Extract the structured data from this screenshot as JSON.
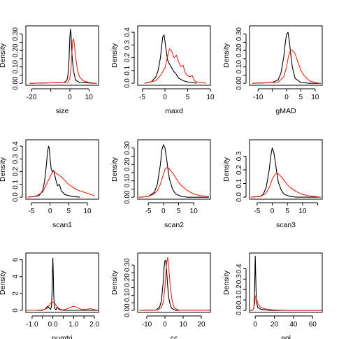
{
  "chart_data": [
    {
      "type": "line",
      "title": "",
      "xlabel": "size",
      "ylabel": "Density",
      "xlim": [
        -23,
        15
      ],
      "ylim": [
        -0.012,
        0.35
      ],
      "xticks": [
        -20,
        -10,
        0,
        10
      ],
      "xtick_labels": [
        "-20",
        "",
        "0",
        "10"
      ],
      "yticks": [
        0.0,
        0.05,
        0.1,
        0.15,
        0.2,
        0.25,
        0.3
      ],
      "ytick_labels": [
        "0.00",
        "",
        "0.10",
        "",
        "0.20",
        "",
        "0.30"
      ],
      "series": [
        {
          "color": "#000000",
          "x": [
            -21,
            -3,
            -1.5,
            -1,
            -0.5,
            0,
            0.3,
            0.6,
            1,
            1.5,
            2,
            3,
            5,
            14
          ],
          "y": [
            0,
            0.005,
            0.02,
            0.05,
            0.13,
            0.28,
            0.33,
            0.3,
            0.2,
            0.12,
            0.07,
            0.02,
            0.005,
            0
          ]
        },
        {
          "color": "#e8261c",
          "x": [
            -21,
            -1,
            0,
            0.5,
            1,
            1.5,
            2,
            2.5,
            3,
            4,
            5,
            7,
            10,
            14
          ],
          "y": [
            0,
            0.005,
            0.03,
            0.08,
            0.17,
            0.26,
            0.27,
            0.22,
            0.16,
            0.08,
            0.04,
            0.015,
            0.005,
            0
          ]
        }
      ]
    },
    {
      "type": "line",
      "title": "",
      "xlabel": "maxd",
      "ylabel": "Density",
      "xlim": [
        -6,
        10
      ],
      "ylim": [
        -0.016,
        0.45
      ],
      "xticks": [
        -5,
        0,
        5,
        10
      ],
      "xtick_labels": [
        "-5",
        "0",
        "5",
        "10"
      ],
      "yticks": [
        0.0,
        0.1,
        0.2,
        0.3,
        0.4
      ],
      "ytick_labels": [
        "0.0",
        "0.1",
        "0.2",
        "0.3",
        "0.4"
      ],
      "series": [
        {
          "color": "#000000",
          "x": [
            -4.5,
            -3,
            -2,
            -1.5,
            -1,
            -0.5,
            -0.2,
            0,
            0.3,
            0.6,
            1,
            1.5,
            2,
            2.5,
            3,
            4,
            5,
            7
          ],
          "y": [
            0,
            0.01,
            0.05,
            0.1,
            0.2,
            0.36,
            0.38,
            0.33,
            0.25,
            0.18,
            0.15,
            0.12,
            0.09,
            0.07,
            0.04,
            0.02,
            0.01,
            0
          ]
        },
        {
          "color": "#e8261c",
          "x": [
            -4.5,
            -2,
            -1,
            0,
            0.5,
            1,
            1.5,
            2,
            2.5,
            3,
            3.5,
            4,
            4.5,
            5,
            5.5,
            6,
            6.5,
            7,
            8,
            9
          ],
          "y": [
            0,
            0.02,
            0.06,
            0.12,
            0.2,
            0.27,
            0.25,
            0.2,
            0.22,
            0.17,
            0.13,
            0.14,
            0.08,
            0.06,
            0.05,
            0.06,
            0.02,
            0.01,
            0.005,
            0
          ]
        }
      ]
    },
    {
      "type": "line",
      "title": "",
      "xlabel": "gMAD",
      "ylabel": "Density",
      "xlim": [
        -13,
        12.5
      ],
      "ylim": [
        -0.012,
        0.35
      ],
      "xticks": [
        -10,
        -5,
        0,
        5,
        10
      ],
      "xtick_labels": [
        "-10",
        "",
        "0",
        "5",
        "10"
      ],
      "yticks": [
        0.0,
        0.05,
        0.1,
        0.15,
        0.2,
        0.25,
        0.3
      ],
      "ytick_labels": [
        "0.00",
        "",
        "0.10",
        "",
        "0.20",
        "",
        "0.30"
      ],
      "series": [
        {
          "color": "#000000",
          "x": [
            -12,
            -5,
            -3,
            -2,
            -1,
            -0.5,
            0,
            0.5,
            1,
            1.5,
            2,
            3,
            5,
            8,
            12
          ],
          "y": [
            0,
            0.005,
            0.02,
            0.06,
            0.16,
            0.24,
            0.3,
            0.31,
            0.25,
            0.17,
            0.1,
            0.03,
            0.005,
            0,
            0
          ]
        },
        {
          "color": "#e8261c",
          "x": [
            -12,
            -3,
            -1,
            0,
            0.5,
            1,
            1.5,
            2,
            3,
            4,
            5,
            6,
            8,
            10,
            12
          ],
          "y": [
            0,
            0.005,
            0.04,
            0.1,
            0.15,
            0.19,
            0.2,
            0.2,
            0.18,
            0.13,
            0.08,
            0.05,
            0.015,
            0.005,
            0
          ]
        }
      ]
    },
    {
      "type": "line",
      "title": "",
      "xlabel": "scan1",
      "ylabel": "Density",
      "xlim": [
        -6.5,
        13
      ],
      "ylim": [
        -0.016,
        0.45
      ],
      "xticks": [
        -5,
        0,
        5,
        10
      ],
      "xtick_labels": [
        "-5",
        "0",
        "5",
        "10"
      ],
      "yticks": [
        0.0,
        0.1,
        0.2,
        0.3,
        0.4
      ],
      "ytick_labels": [
        "0.0",
        "0.1",
        "0.2",
        "0.3",
        "0.4"
      ],
      "series": [
        {
          "color": "#000000",
          "x": [
            -6,
            -3,
            -2,
            -1.5,
            -1,
            -0.7,
            -0.4,
            -0.2,
            0,
            0.3,
            0.6,
            1,
            1.5,
            2,
            2.5,
            3,
            4,
            6,
            8
          ],
          "y": [
            0,
            0.01,
            0.05,
            0.12,
            0.25,
            0.35,
            0.4,
            0.38,
            0.3,
            0.22,
            0.2,
            0.21,
            0.14,
            0.09,
            0.1,
            0.05,
            0.02,
            0.005,
            0
          ]
        },
        {
          "color": "#e8261c",
          "x": [
            -6,
            -4,
            -2,
            -1,
            0,
            0.5,
            1,
            1.5,
            2,
            3,
            4,
            5,
            6,
            7,
            8,
            9,
            10,
            11,
            12
          ],
          "y": [
            0,
            0.005,
            0.04,
            0.1,
            0.16,
            0.19,
            0.2,
            0.19,
            0.18,
            0.16,
            0.13,
            0.1,
            0.08,
            0.06,
            0.05,
            0.04,
            0.03,
            0.02,
            0.01
          ]
        }
      ]
    },
    {
      "type": "line",
      "title": "",
      "xlabel": "scan2",
      "ylabel": "Density",
      "xlim": [
        -8.5,
        15.5
      ],
      "ylim": [
        -0.012,
        0.35
      ],
      "xticks": [
        -5,
        0,
        5,
        10
      ],
      "xtick_labels": [
        "-5",
        "0",
        "5",
        "10"
      ],
      "yticks": [
        0.0,
        0.05,
        0.1,
        0.15,
        0.2,
        0.25,
        0.3
      ],
      "ytick_labels": [
        "0.00",
        "",
        "0.10",
        "",
        "0.20",
        "",
        "0.30"
      ],
      "series": [
        {
          "color": "#000000",
          "x": [
            -8,
            -5,
            -3,
            -2,
            -1,
            -0.5,
            0,
            0.5,
            1,
            1.5,
            2,
            3,
            4,
            6,
            8,
            15
          ],
          "y": [
            0,
            0.005,
            0.03,
            0.08,
            0.2,
            0.29,
            0.32,
            0.3,
            0.24,
            0.17,
            0.11,
            0.05,
            0.02,
            0.005,
            0,
            0
          ]
        },
        {
          "color": "#e8261c",
          "x": [
            -8,
            -5,
            -3,
            -2,
            -1,
            0,
            0.5,
            1,
            1.5,
            2,
            3,
            4,
            5,
            6,
            8,
            10,
            12,
            15
          ],
          "y": [
            0,
            0.005,
            0.02,
            0.04,
            0.08,
            0.14,
            0.17,
            0.18,
            0.18,
            0.17,
            0.15,
            0.12,
            0.09,
            0.07,
            0.04,
            0.02,
            0.01,
            0.005
          ]
        }
      ]
    },
    {
      "type": "line",
      "title": "",
      "xlabel": "scan3",
      "ylabel": "Density",
      "xlim": [
        -7.5,
        16.5
      ],
      "ylim": [
        -0.015,
        0.42
      ],
      "xticks": [
        -5,
        0,
        5,
        10,
        15
      ],
      "xtick_labels": [
        "-5",
        "0",
        "5",
        "10",
        ""
      ],
      "yticks": [
        0.0,
        0.1,
        0.2,
        0.3
      ],
      "ytick_labels": [
        "0.0",
        "0.1",
        "0.2",
        "0.3"
      ],
      "series": [
        {
          "color": "#000000",
          "x": [
            -7,
            -4,
            -3,
            -2,
            -1,
            -0.5,
            0,
            0.5,
            1,
            1.5,
            2,
            3,
            4,
            6,
            8,
            16
          ],
          "y": [
            0,
            0.005,
            0.02,
            0.07,
            0.2,
            0.3,
            0.36,
            0.33,
            0.26,
            0.18,
            0.11,
            0.05,
            0.02,
            0.005,
            0,
            0
          ]
        },
        {
          "color": "#e8261c",
          "x": [
            -7,
            -4,
            -3,
            -2,
            -1,
            0,
            1,
            1.5,
            2,
            3,
            4,
            5,
            6,
            8,
            10,
            12,
            14,
            16
          ],
          "y": [
            0,
            0.005,
            0.015,
            0.03,
            0.07,
            0.13,
            0.17,
            0.18,
            0.17,
            0.15,
            0.12,
            0.09,
            0.07,
            0.04,
            0.02,
            0.01,
            0.005,
            0
          ]
        }
      ]
    },
    {
      "type": "line",
      "title": "",
      "xlabel": "numtri",
      "ylabel": "Density",
      "xlim": [
        -1.3,
        2.2
      ],
      "ylim": [
        -0.25,
        6.8
      ],
      "xticks": [
        -1.0,
        -0.5,
        0.0,
        0.5,
        1.0,
        1.5,
        2.0
      ],
      "xtick_labels": [
        "-1.0",
        "",
        "0.0",
        "",
        "1.0",
        "",
        "2.0"
      ],
      "yticks": [
        0,
        2,
        4,
        6
      ],
      "ytick_labels": [
        "0",
        "2",
        "4",
        "6"
      ],
      "series": [
        {
          "color": "#000000",
          "x": [
            -1.3,
            -0.5,
            -0.35,
            -0.25,
            -0.18,
            -0.12,
            -0.07,
            -0.04,
            -0.02,
            0,
            0.02,
            0.04,
            0.07,
            0.1,
            0.15,
            0.2,
            0.3,
            0.5,
            2.2
          ],
          "y": [
            0,
            0,
            0.2,
            0.5,
            0.3,
            0.1,
            0.4,
            2,
            4.5,
            6.2,
            4.5,
            2,
            0.6,
            0.2,
            0.05,
            0.4,
            0.1,
            0,
            0
          ]
        },
        {
          "color": "#e8261c",
          "x": [
            -1.3,
            -0.8,
            -0.5,
            -0.3,
            -0.2,
            -0.1,
            0,
            0.1,
            0.2,
            0.3,
            0.45,
            0.6,
            0.8,
            1.0,
            1.2,
            1.4,
            1.6,
            1.8,
            2.0,
            2.2
          ],
          "y": [
            0,
            0.01,
            0.05,
            0.2,
            0.5,
            0.85,
            1.0,
            0.8,
            0.45,
            0.2,
            0.05,
            0.1,
            0.3,
            0.5,
            0.3,
            0.1,
            0.12,
            0.2,
            0.08,
            0
          ]
        }
      ]
    },
    {
      "type": "line",
      "title": "",
      "xlabel": "cc",
      "ylabel": "Density",
      "xlim": [
        -15,
        25
      ],
      "ylim": [
        -0.014,
        0.38
      ],
      "xticks": [
        -10,
        0,
        10,
        20
      ],
      "xtick_labels": [
        "-10",
        "0",
        "10",
        "20"
      ],
      "yticks": [
        0.0,
        0.05,
        0.1,
        0.15,
        0.2,
        0.25,
        0.3
      ],
      "ytick_labels": [
        "0.00",
        "",
        "0.10",
        "",
        "0.20",
        "",
        "0.30"
      ],
      "series": [
        {
          "color": "#000000",
          "x": [
            -14,
            -5,
            -3,
            -2,
            -1,
            -0.5,
            0,
            0.5,
            1,
            1.5,
            2,
            3,
            4,
            6,
            25
          ],
          "y": [
            0,
            0.002,
            0.02,
            0.06,
            0.18,
            0.28,
            0.33,
            0.33,
            0.25,
            0.16,
            0.09,
            0.03,
            0.01,
            0,
            0
          ]
        },
        {
          "color": "#e8261c",
          "x": [
            -14,
            -4,
            -2,
            -1,
            0,
            0.5,
            1,
            1.5,
            2,
            2.5,
            3,
            4,
            5,
            6,
            8,
            25
          ],
          "y": [
            0,
            0.002,
            0.02,
            0.05,
            0.15,
            0.25,
            0.32,
            0.35,
            0.3,
            0.22,
            0.15,
            0.06,
            0.02,
            0.01,
            0,
            0
          ]
        }
      ]
    },
    {
      "type": "line",
      "title": "",
      "xlabel": "apl",
      "ylabel": "Density",
      "xlim": [
        -6,
        70
      ],
      "ylim": [
        -0.02,
        0.55
      ],
      "xticks": [
        0,
        20,
        40,
        60
      ],
      "xtick_labels": [
        "0",
        "20",
        "40",
        "60"
      ],
      "yticks": [
        0.0,
        0.1,
        0.2,
        0.3,
        0.4
      ],
      "ytick_labels": [
        "0.0",
        "0.1",
        "0.2",
        "0.3",
        "0.4"
      ],
      "series": [
        {
          "color": "#000000",
          "x": [
            -6,
            -3,
            -1.5,
            -0.8,
            -0.3,
            0,
            0.3,
            0.8,
            1.5,
            2.5,
            4,
            6,
            10,
            15,
            70
          ],
          "y": [
            0,
            0,
            0.02,
            0.15,
            0.4,
            0.52,
            0.4,
            0.2,
            0.07,
            0.03,
            0.02,
            0.01,
            0.005,
            0,
            0
          ]
        },
        {
          "color": "#e8261c",
          "x": [
            -6,
            -3,
            -1.5,
            -0.5,
            0,
            0.5,
            1,
            2,
            3,
            5,
            8,
            12,
            18,
            25,
            35,
            70
          ],
          "y": [
            0,
            0,
            0.02,
            0.08,
            0.12,
            0.14,
            0.13,
            0.09,
            0.06,
            0.035,
            0.02,
            0.01,
            0.005,
            0.002,
            0,
            0
          ]
        }
      ]
    }
  ]
}
